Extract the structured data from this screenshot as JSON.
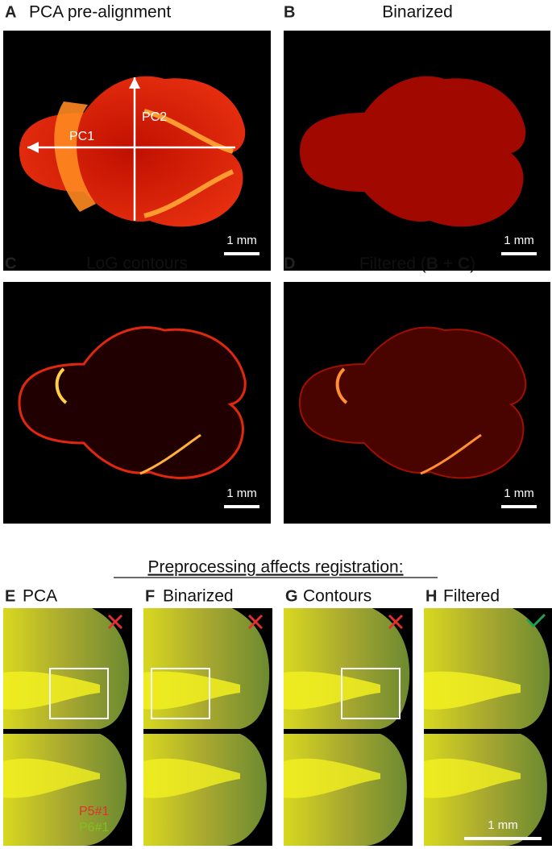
{
  "panels": [
    {
      "letter": "A",
      "title": "PCA pre-alignment",
      "scale_label": "1 mm"
    },
    {
      "letter": "B",
      "title": "Binarized",
      "scale_label": "1 mm"
    },
    {
      "letter": "C",
      "title": "LoG contours",
      "scale_label": "1 mm"
    },
    {
      "letter": "D",
      "title_parts": [
        "Filtered (",
        "B",
        " + ",
        "C",
        ")"
      ],
      "scale_label": "1 mm"
    }
  ],
  "annotations": {
    "pc1": "PC1",
    "pc2": "PC2"
  },
  "section_title": "Preprocessing affects registration:",
  "registration_panels": [
    {
      "letter": "E",
      "title": "PCA"
    },
    {
      "letter": "F",
      "title": "Binarized"
    },
    {
      "letter": "G",
      "title": "Contours"
    },
    {
      "letter": "H",
      "title": "Filtered",
      "scale_label": "1 mm"
    }
  ],
  "legend": [
    "P5#1",
    "P6#1"
  ]
}
